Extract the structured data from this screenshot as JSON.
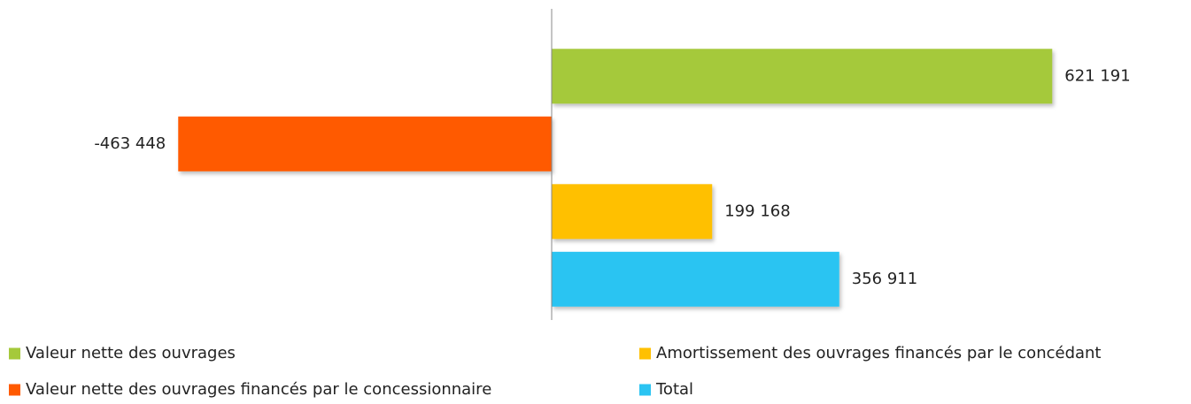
{
  "chart_data": {
    "type": "bar",
    "orientation": "horizontal",
    "xlim": [
      -600000,
      700000
    ],
    "series": [
      {
        "name": "Valeur nette des ouvrages",
        "color": "#a5c93b",
        "values": [
          621191
        ],
        "value_labels": [
          "621 191"
        ]
      },
      {
        "name": "Valeur nette des ouvrages financés par le concessionnaire",
        "color": "#ff5a00",
        "values": [
          -463448
        ],
        "value_labels": [
          "-463 448"
        ]
      },
      {
        "name": "Amortissement des ouvrages financés par le concédant",
        "color": "#ffc000",
        "values": [
          199168
        ],
        "value_labels": [
          "199 168"
        ]
      },
      {
        "name": "Total",
        "color": "#2bc4f2",
        "values": [
          356911
        ],
        "value_labels": [
          "356 911"
        ]
      }
    ]
  }
}
